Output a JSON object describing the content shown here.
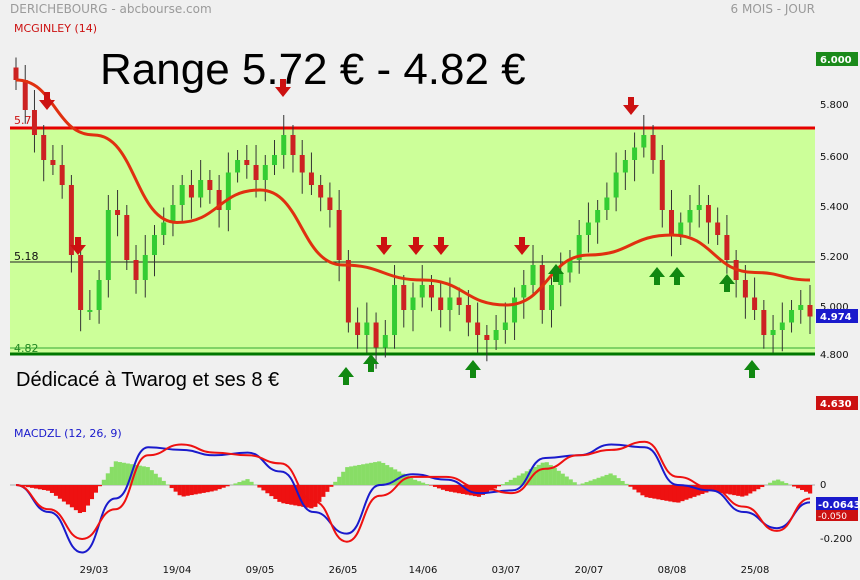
{
  "header": {
    "left": "DERICHEBOURG - abcbourse.com",
    "right": "6 MOIS - JOUR",
    "indicator": "MCGINLEY (14)"
  },
  "annotations": {
    "range_title": "Range 5.72 € - 4.82 €",
    "dedication": "Dédicacé à Twarog et ses 8 €",
    "line_518": "5.18",
    "line_482": "4.82",
    "line_572_partial": "5.7"
  },
  "price_axis": {
    "labels": [
      "5.800",
      "5.600",
      "5.400",
      "5.200",
      "5.000",
      "4.800"
    ],
    "top_badge": "6.000",
    "last_badge": "4.974",
    "bottom_badge": "4.630"
  },
  "macd": {
    "title": "MACDZL (12, 26, 9)",
    "labels": [
      "0",
      "-0.200"
    ],
    "badge_blue": "-0.0643",
    "badge_red": "-0.050"
  },
  "x_labels": [
    "29/03",
    "19/04",
    "09/05",
    "26/05",
    "14/06",
    "03/07",
    "20/07",
    "08/08",
    "25/08"
  ],
  "colors": {
    "bg": "#f0f0f0",
    "range_fill": "#ccff99",
    "range_top": "#e60000",
    "range_bottom": "#007700",
    "mcginley": "#e03010",
    "candle_up": "#33cc33",
    "candle_down": "#cc2222",
    "macd_blue": "#1a1acc",
    "macd_red": "#ee1111",
    "hist_pos": "#88dd66",
    "hist_neg": "#ee1111",
    "badge_green": "#1a8a1a",
    "badge_blue": "#1a1acc",
    "badge_red": "#cc1111"
  },
  "chart_data": [
    {
      "type": "candlestick",
      "title": "MCGINLEY (14)",
      "ylim": [
        4.63,
        6.0
      ],
      "levels": {
        "range_top": 5.72,
        "mid": 5.18,
        "range_bottom": 4.82
      },
      "closes": [
        5.92,
        5.8,
        5.7,
        5.6,
        5.58,
        5.5,
        5.22,
        5.0,
        5.0,
        5.12,
        5.4,
        5.38,
        5.2,
        5.12,
        5.22,
        5.3,
        5.35,
        5.42,
        5.5,
        5.45,
        5.52,
        5.48,
        5.4,
        5.55,
        5.6,
        5.58,
        5.52,
        5.58,
        5.62,
        5.7,
        5.62,
        5.55,
        5.5,
        5.45,
        5.4,
        5.2,
        4.95,
        4.9,
        4.95,
        4.85,
        4.9,
        5.1,
        5.0,
        5.05,
        5.1,
        5.05,
        5.0,
        5.05,
        5.02,
        4.95,
        4.9,
        4.88,
        4.92,
        4.95,
        5.05,
        5.1,
        5.18,
        5.0,
        5.1,
        5.15,
        5.2,
        5.3,
        5.35,
        5.4,
        5.45,
        5.55,
        5.6,
        5.65,
        5.7,
        5.6,
        5.4,
        5.3,
        5.35,
        5.4,
        5.42,
        5.35,
        5.3,
        5.2,
        5.12,
        5.05,
        5.0,
        4.9,
        4.92,
        4.95,
        5.0,
        5.02,
        4.974
      ],
      "mcginley_points": [
        {
          "x": "29/03",
          "y": 5.7
        },
        {
          "x": "19/04",
          "y": 5.35
        },
        {
          "x": "09/05",
          "y": 5.48
        },
        {
          "x": "26/05",
          "y": 5.18
        },
        {
          "x": "14/06",
          "y": 5.12
        },
        {
          "x": "03/07",
          "y": 5.02
        },
        {
          "x": "20/07",
          "y": 5.22
        },
        {
          "x": "08/08",
          "y": 5.3
        },
        {
          "x": "25/08",
          "y": 5.15
        }
      ],
      "x_labels": [
        "29/03",
        "19/04",
        "09/05",
        "26/05",
        "14/06",
        "03/07",
        "20/07",
        "08/08",
        "25/08"
      ]
    },
    {
      "type": "line",
      "title": "MACDZL (12, 26, 9)",
      "ylim": [
        -0.26,
        0.16
      ],
      "series": [
        {
          "values": [
            0.0,
            -0.1,
            -0.25,
            -0.05,
            0.14,
            0.13,
            0.11,
            0.12,
            0.05,
            -0.1,
            -0.18,
            0.0,
            0.04,
            0.02,
            -0.03,
            -0.02,
            0.1,
            0.11,
            0.15,
            0.14,
            0.0,
            -0.02,
            -0.1,
            -0.16,
            -0.0643
          ]
        },
        {
          "values": [
            0.0,
            -0.09,
            -0.2,
            -0.09,
            0.11,
            0.15,
            0.12,
            0.11,
            0.08,
            -0.06,
            -0.21,
            -0.04,
            0.03,
            0.03,
            -0.01,
            -0.03,
            0.06,
            0.11,
            0.13,
            0.16,
            0.03,
            -0.01,
            -0.08,
            -0.17,
            -0.05
          ]
        }
      ]
    }
  ]
}
